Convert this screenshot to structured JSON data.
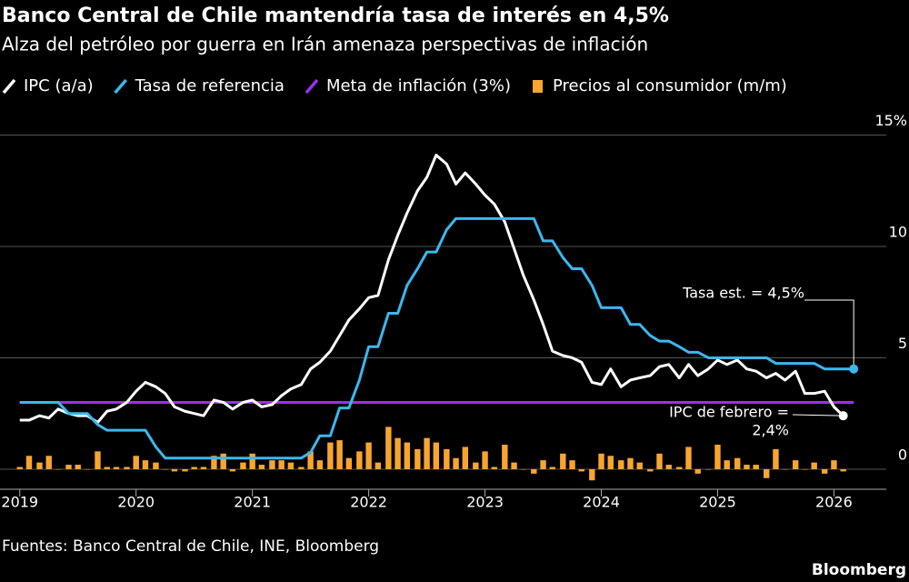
{
  "chart_data": {
    "type": "line",
    "title": "Banco Central de Chile mantendría tasa de interés en 4,5%",
    "subtitle": "Alza del petróleo por guerra en Irán amenaza perspectivas de inflación",
    "source": "Fuentes: Banco Central de Chile, INE, Bloomberg",
    "brand": "Bloomberg",
    "x": [
      2019,
      2019.08,
      2019.17,
      2019.25,
      2019.33,
      2019.42,
      2019.5,
      2019.58,
      2019.67,
      2019.75,
      2019.83,
      2019.92,
      2020,
      2020.08,
      2020.17,
      2020.25,
      2020.33,
      2020.42,
      2020.5,
      2020.58,
      2020.67,
      2020.75,
      2020.83,
      2020.92,
      2021,
      2021.08,
      2021.17,
      2021.25,
      2021.33,
      2021.42,
      2021.5,
      2021.58,
      2021.67,
      2021.75,
      2021.83,
      2021.92,
      2022,
      2022.08,
      2022.17,
      2022.25,
      2022.33,
      2022.42,
      2022.5,
      2022.58,
      2022.67,
      2022.75,
      2022.83,
      2022.92,
      2023,
      2023.08,
      2023.17,
      2023.25,
      2023.33,
      2023.42,
      2023.5,
      2023.58,
      2023.67,
      2023.75,
      2023.83,
      2023.92,
      2024,
      2024.08,
      2024.17,
      2024.25,
      2024.33,
      2024.42,
      2024.5,
      2024.58,
      2024.67,
      2024.75,
      2024.83,
      2024.92,
      2025,
      2025.08,
      2025.17,
      2025.25,
      2025.33,
      2025.42,
      2025.5,
      2025.58,
      2025.67,
      2025.75,
      2025.83,
      2025.92,
      2026,
      2026.08,
      2026.17
    ],
    "series": [
      {
        "name": "IPC (a/a)",
        "type": "line",
        "color": "#ffffff",
        "values": [
          2.2,
          2.2,
          2.4,
          2.3,
          2.7,
          2.5,
          2.4,
          2.4,
          2.1,
          2.6,
          2.7,
          3.0,
          3.5,
          3.9,
          3.7,
          3.4,
          2.8,
          2.6,
          2.5,
          2.4,
          3.1,
          3.0,
          2.7,
          3.0,
          3.1,
          2.8,
          2.9,
          3.3,
          3.6,
          3.8,
          4.5,
          4.8,
          5.3,
          6.0,
          6.7,
          7.2,
          7.7,
          7.8,
          9.4,
          10.5,
          11.5,
          12.5,
          13.1,
          14.1,
          13.7,
          12.8,
          13.3,
          12.8,
          12.3,
          11.9,
          11.1,
          9.9,
          8.7,
          7.6,
          6.5,
          5.3,
          5.1,
          5.0,
          4.8,
          3.9,
          3.8,
          4.5,
          3.7,
          4.0,
          4.1,
          4.2,
          4.6,
          4.7,
          4.1,
          4.7,
          4.2,
          4.5,
          4.9,
          4.7,
          4.9,
          4.5,
          4.4,
          4.1,
          4.3,
          4.0,
          4.4,
          3.4,
          3.4,
          3.5,
          2.8,
          2.4,
          null
        ]
      },
      {
        "name": "Tasa de referencia",
        "type": "line",
        "color": "#3cb7ee",
        "values": [
          3.0,
          3.0,
          3.0,
          3.0,
          3.0,
          2.5,
          2.5,
          2.5,
          2.0,
          1.75,
          1.75,
          1.75,
          1.75,
          1.75,
          1.0,
          0.5,
          0.5,
          0.5,
          0.5,
          0.5,
          0.5,
          0.5,
          0.5,
          0.5,
          0.5,
          0.5,
          0.5,
          0.5,
          0.5,
          0.5,
          0.75,
          1.5,
          1.5,
          2.75,
          2.75,
          4.0,
          5.5,
          5.5,
          7.0,
          7.0,
          8.25,
          9.0,
          9.75,
          9.75,
          10.75,
          11.25,
          11.25,
          11.25,
          11.25,
          11.25,
          11.25,
          11.25,
          11.25,
          11.25,
          10.25,
          10.25,
          9.5,
          9.0,
          9.0,
          8.25,
          7.25,
          7.25,
          7.25,
          6.5,
          6.5,
          6.0,
          5.75,
          5.75,
          5.5,
          5.25,
          5.25,
          5.0,
          5.0,
          5.0,
          5.0,
          5.0,
          5.0,
          5.0,
          4.75,
          4.75,
          4.75,
          4.75,
          4.75,
          4.5,
          4.5,
          4.5,
          4.5
        ]
      },
      {
        "name": "Precios al consumidor (m/m)",
        "type": "bar",
        "color": "#f7a531",
        "values": [
          0.1,
          0.6,
          0.3,
          0.6,
          0.0,
          0.2,
          0.2,
          0.0,
          0.8,
          0.1,
          0.1,
          0.1,
          0.6,
          0.4,
          0.3,
          0.0,
          -0.1,
          -0.1,
          0.1,
          0.1,
          0.6,
          0.7,
          -0.1,
          0.3,
          0.7,
          0.2,
          0.4,
          0.4,
          0.3,
          0.1,
          0.8,
          0.4,
          1.2,
          1.3,
          0.5,
          0.8,
          1.2,
          0.3,
          1.9,
          1.4,
          1.2,
          0.9,
          1.4,
          1.2,
          0.9,
          0.5,
          1.0,
          0.3,
          0.8,
          0.1,
          1.1,
          0.3,
          0.0,
          -0.2,
          0.4,
          0.1,
          0.7,
          0.4,
          -0.1,
          -0.5,
          0.7,
          0.6,
          0.4,
          0.5,
          0.3,
          -0.1,
          0.7,
          0.2,
          0.1,
          1.0,
          -0.2,
          0.0,
          1.1,
          0.4,
          0.5,
          0.2,
          0.2,
          -0.4,
          0.9,
          0.0,
          0.4,
          0.0,
          0.3,
          -0.2,
          0.4,
          -0.1,
          null
        ]
      }
    ],
    "target_line": {
      "name": "Meta de inflación (3%)",
      "color": "#9b30f0",
      "value": 3
    },
    "annotations": [
      {
        "lines": [
          "Tasa est. = 4,5%"
        ]
      },
      {
        "lines": [
          "IPC de febrero =",
          "2,4%"
        ]
      }
    ],
    "xlim": [
      2018.83,
      2026.45
    ],
    "xticks": [
      2019,
      2020,
      2021,
      2022,
      2023,
      2024,
      2025,
      2026
    ],
    "ylim": [
      -0.9,
      15.4
    ],
    "yticks": [
      0,
      5,
      10,
      {
        "value": 15,
        "label": "15%"
      }
    ],
    "grid": true
  }
}
